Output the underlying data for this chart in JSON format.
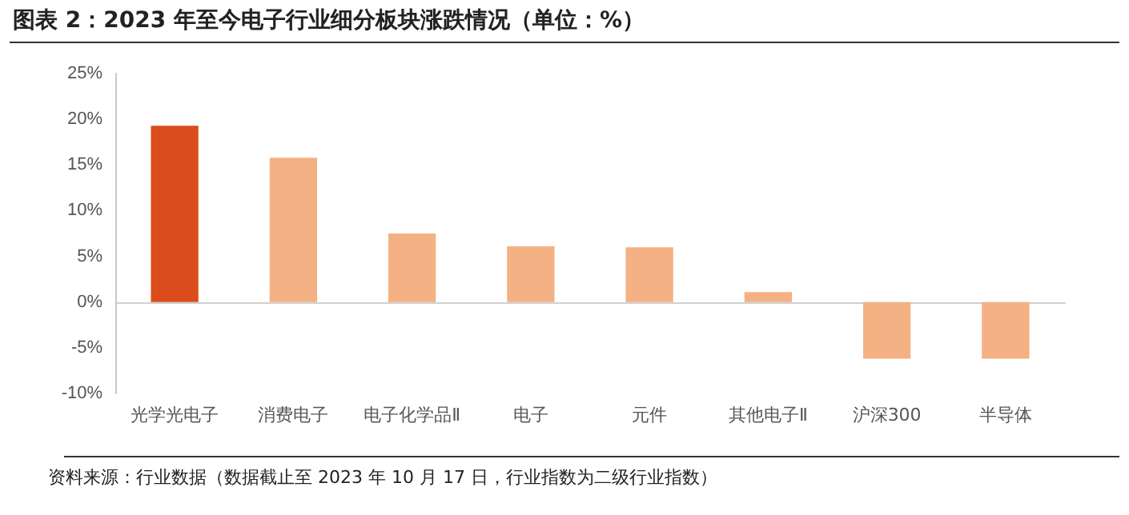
{
  "chart_data": {
    "type": "bar",
    "title": "图表 2：2023 年至今电子行业细分板块涨跌情况（单位：%）",
    "categories": [
      "光学光电子",
      "消费电子",
      "电子化学品Ⅱ",
      "电子",
      "元件",
      "其他电子Ⅱ",
      "沪深300",
      "半导体"
    ],
    "values": [
      19.3,
      15.8,
      7.5,
      6.1,
      6.0,
      1.1,
      -6.2,
      -6.2
    ],
    "colors": [
      "#dc4d1e",
      "#f4b183",
      "#f4b183",
      "#f4b183",
      "#f4b183",
      "#f4b183",
      "#f4b183",
      "#f4b183"
    ],
    "ylim": [
      -10,
      25
    ],
    "yticks": [
      {
        "value": -10,
        "label": "-10%"
      },
      {
        "value": -5,
        "label": "-5%"
      },
      {
        "value": 0,
        "label": "0%"
      },
      {
        "value": 5,
        "label": "5%"
      },
      {
        "value": 10,
        "label": "10%"
      },
      {
        "value": 15,
        "label": "15%"
      },
      {
        "value": 20,
        "label": "20%"
      },
      {
        "value": 25,
        "label": "25%"
      }
    ],
    "annotations": [
      "资料来源：行业数据（数据截止至 2023 年 10 月 17 日，行业指数为二级行业指数）"
    ]
  }
}
